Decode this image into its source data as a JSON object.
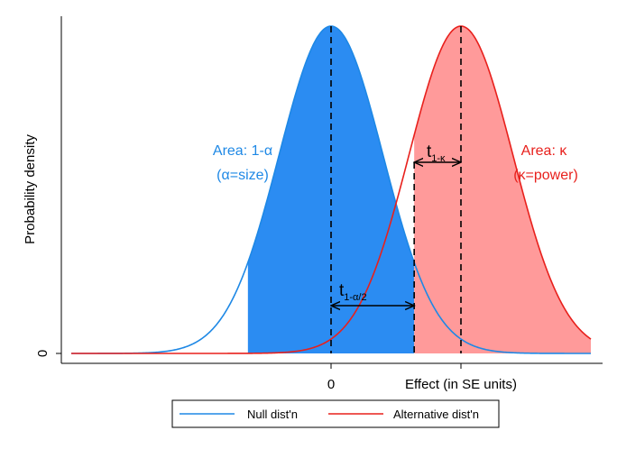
{
  "chart_data": {
    "type": "area",
    "ylabel": "Probability density",
    "x_ticks": [
      {
        "x": 0,
        "label": "0"
      },
      {
        "x": 2.5,
        "label": "Effect (in SE units)"
      }
    ],
    "y_ticks": [
      {
        "y": 0,
        "label": "0"
      }
    ],
    "xlim": [
      -5,
      5
    ],
    "ylim": [
      0,
      0.4
    ],
    "grid": false,
    "legend_position": "bottom",
    "series": [
      {
        "name": "Null dist'n",
        "color": "#1e88e5",
        "fill": "#2b8cf2",
        "mean": 0,
        "sd": 1,
        "shaded_from": -1.6,
        "shaded_to": 1.6
      },
      {
        "name": "Alternative dist'n",
        "color": "#e8201c",
        "fill": "#ff9a9a",
        "mean": 2.5,
        "sd": 1,
        "shaded_from": 1.6,
        "shaded_to": 5
      }
    ],
    "annotations": {
      "null_area": [
        "Area: 1-α",
        "(α=size)"
      ],
      "alt_area": [
        "Area: κ",
        "(κ=power)"
      ],
      "t_alpha": {
        "base": "t",
        "sub": "1-α/2"
      },
      "t_kappa": {
        "base": "t",
        "sub": "1-κ"
      }
    },
    "critical_value": 1.6
  }
}
